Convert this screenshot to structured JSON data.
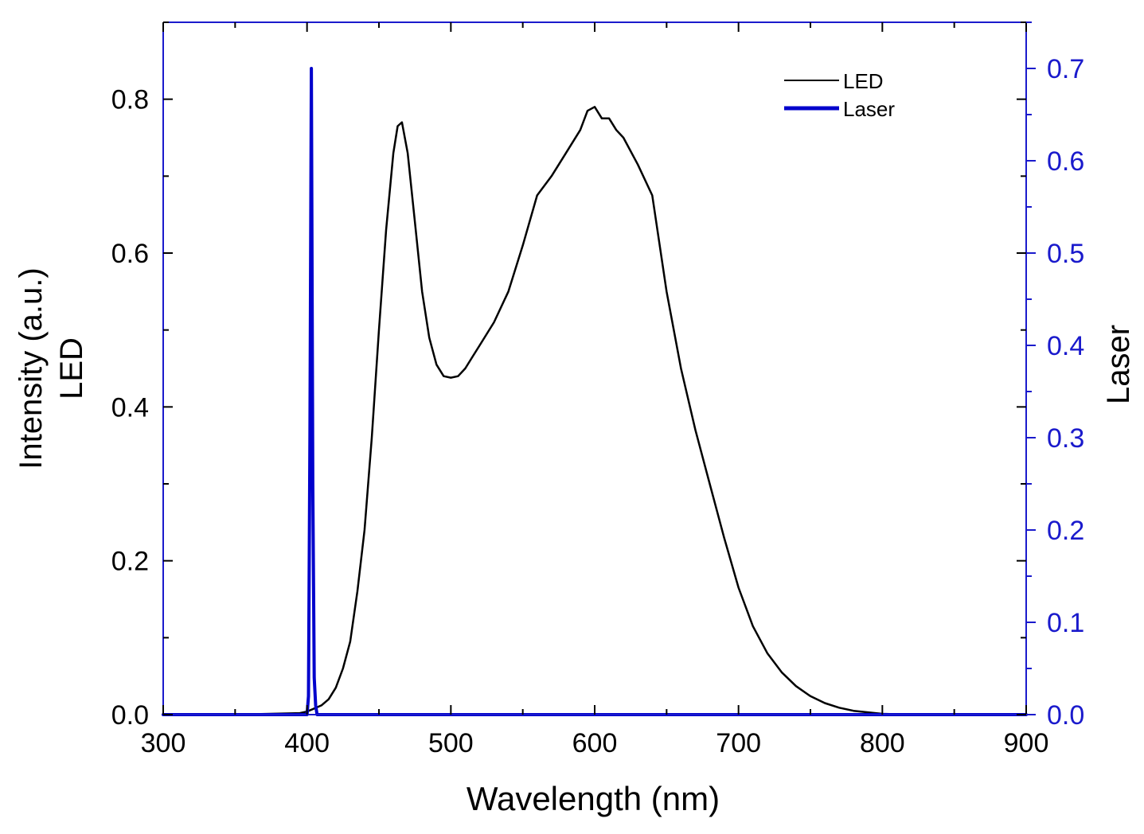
{
  "chart_data": {
    "type": "line",
    "title": "",
    "xlabel": "Wavelength (nm)",
    "ylabel_left_line1": "Intensity (a.u.)",
    "ylabel_left_line2": "LED",
    "ylabel_right": "Laser",
    "xlim": [
      300,
      900
    ],
    "ylim_left": [
      0,
      0.9
    ],
    "ylim_right": [
      0,
      0.75
    ],
    "x_ticks": [
      300,
      400,
      500,
      600,
      700,
      800,
      900
    ],
    "x_tick_labels": [
      "300",
      "400",
      "500",
      "600",
      "700",
      "800",
      "900"
    ],
    "y_left_ticks": [
      0.0,
      0.2,
      0.4,
      0.6,
      0.8
    ],
    "y_left_tick_labels": [
      "0.0",
      "0.2",
      "0.4",
      "0.6",
      "0.8"
    ],
    "y_right_ticks": [
      0.0,
      0.1,
      0.2,
      0.3,
      0.4,
      0.5,
      0.6,
      0.7
    ],
    "y_right_tick_labels": [
      "0.0",
      "0.1",
      "0.2",
      "0.3",
      "0.4",
      "0.5",
      "0.6",
      "0.7"
    ],
    "legend_position": "top-right",
    "grid": false,
    "colors": {
      "led": "#000000",
      "laser": "#0000cc",
      "right_axis": "#1a1acc",
      "left_axis": "#000000"
    },
    "series": [
      {
        "name": "LED",
        "axis": "left",
        "x": [
          300,
          350,
          395,
          400,
          405,
          410,
          415,
          420,
          425,
          430,
          435,
          440,
          445,
          450,
          455,
          460,
          463,
          466,
          470,
          475,
          480,
          485,
          490,
          495,
          500,
          505,
          510,
          515,
          520,
          530,
          540,
          550,
          560,
          570,
          580,
          590,
          595,
          600,
          605,
          610,
          615,
          620,
          630,
          640,
          650,
          660,
          670,
          680,
          690,
          700,
          710,
          720,
          730,
          740,
          750,
          760,
          770,
          780,
          790,
          800,
          820,
          850,
          900
        ],
        "values": [
          0.0,
          0.0,
          0.002,
          0.004,
          0.008,
          0.012,
          0.02,
          0.035,
          0.06,
          0.095,
          0.16,
          0.24,
          0.36,
          0.5,
          0.63,
          0.73,
          0.765,
          0.77,
          0.73,
          0.64,
          0.55,
          0.49,
          0.455,
          0.44,
          0.438,
          0.44,
          0.45,
          0.465,
          0.48,
          0.51,
          0.55,
          0.61,
          0.675,
          0.7,
          0.73,
          0.76,
          0.785,
          0.79,
          0.775,
          0.775,
          0.76,
          0.75,
          0.715,
          0.675,
          0.55,
          0.45,
          0.37,
          0.3,
          0.23,
          0.165,
          0.115,
          0.08,
          0.055,
          0.037,
          0.024,
          0.015,
          0.009,
          0.005,
          0.003,
          0.001,
          0.0,
          0.0,
          0.0
        ]
      },
      {
        "name": "Laser",
        "axis": "right",
        "x": [
          300,
          400,
          401,
          402,
          403,
          404,
          405,
          406,
          407,
          900
        ],
        "values": [
          0.0,
          0.0,
          0.02,
          0.3,
          0.7,
          0.25,
          0.04,
          0.01,
          0.0,
          0.0
        ]
      }
    ]
  }
}
